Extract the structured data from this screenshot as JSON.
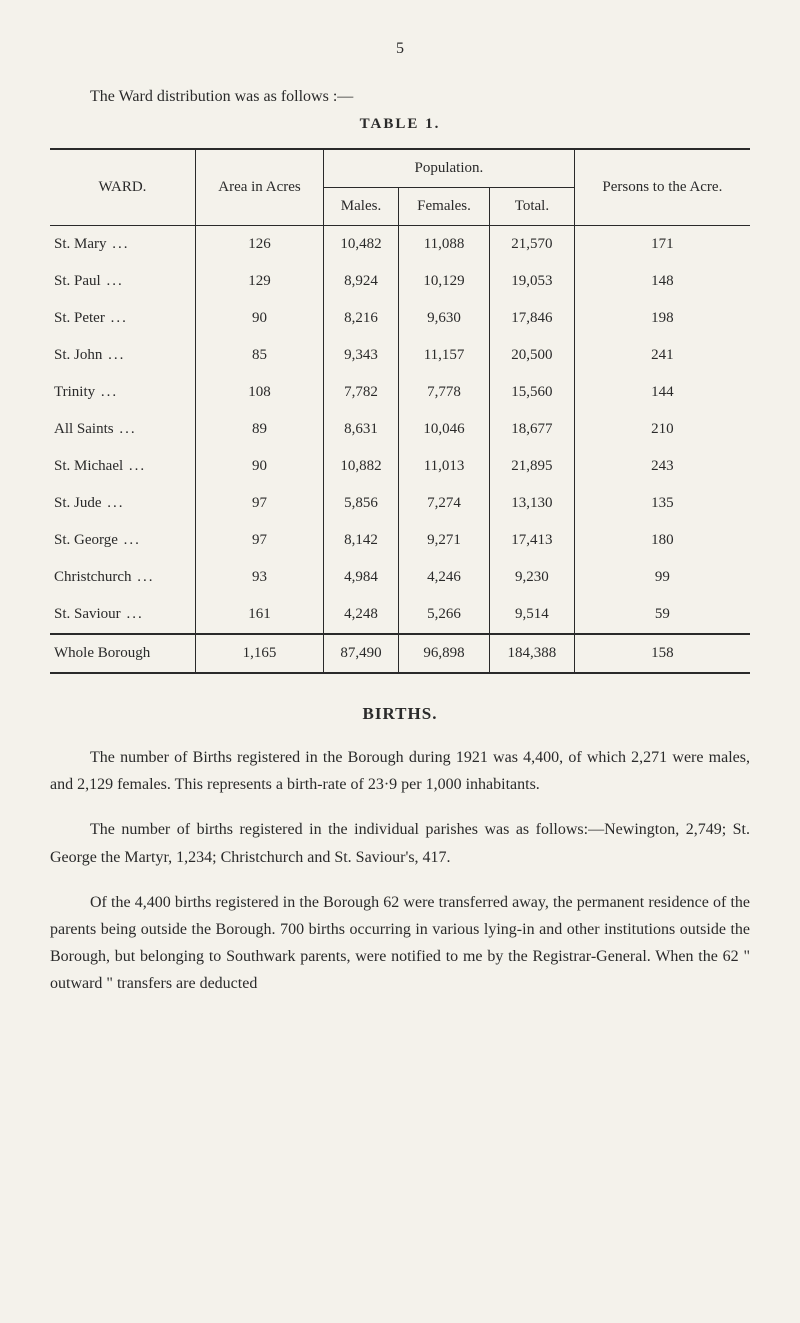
{
  "page_number": "5",
  "intro": "The Ward distribution was as follows :—",
  "table": {
    "title": "TABLE 1.",
    "headers": {
      "ward": "WARD.",
      "area": "Area in Acres",
      "population_group": "Population.",
      "males": "Males.",
      "females": "Females.",
      "total": "Total.",
      "persons": "Persons to the Acre."
    },
    "rows": [
      {
        "ward": "St. Mary",
        "area": "126",
        "males": "10,482",
        "females": "11,088",
        "total": "21,570",
        "persons": "171"
      },
      {
        "ward": "St. Paul",
        "area": "129",
        "males": "8,924",
        "females": "10,129",
        "total": "19,053",
        "persons": "148"
      },
      {
        "ward": "St. Peter",
        "area": "90",
        "males": "8,216",
        "females": "9,630",
        "total": "17,846",
        "persons": "198"
      },
      {
        "ward": "St. John",
        "area": "85",
        "males": "9,343",
        "females": "11,157",
        "total": "20,500",
        "persons": "241"
      },
      {
        "ward": "Trinity",
        "area": "108",
        "males": "7,782",
        "females": "7,778",
        "total": "15,560",
        "persons": "144"
      },
      {
        "ward": "All Saints",
        "area": "89",
        "males": "8,631",
        "females": "10,046",
        "total": "18,677",
        "persons": "210"
      },
      {
        "ward": "St. Michael",
        "area": "90",
        "males": "10,882",
        "females": "11,013",
        "total": "21,895",
        "persons": "243"
      },
      {
        "ward": "St. Jude",
        "area": "97",
        "males": "5,856",
        "females": "7,274",
        "total": "13,130",
        "persons": "135"
      },
      {
        "ward": "St. George",
        "area": "97",
        "males": "8,142",
        "females": "9,271",
        "total": "17,413",
        "persons": "180"
      },
      {
        "ward": "Christchurch",
        "area": "93",
        "males": "4,984",
        "females": "4,246",
        "total": "9,230",
        "persons": "99"
      },
      {
        "ward": "St. Saviour",
        "area": "161",
        "males": "4,248",
        "females": "5,266",
        "total": "9,514",
        "persons": "59"
      }
    ],
    "footer": {
      "ward": "Whole Borough",
      "area": "1,165",
      "males": "87,490",
      "females": "96,898",
      "total": "184,388",
      "persons": "158"
    }
  },
  "births_section": {
    "title": "BIRTHS.",
    "p1": "The number of Births registered in the Borough during 1921 was 4,400, of which 2,271 were males, and 2,129 females. This represents a birth-rate of 23·9 per 1,000 inhabitants.",
    "p2": "The number of births registered in the individual parishes was as follows:—Newington, 2,749; St. George the Martyr, 1,234; Christchurch and St. Saviour's, 417.",
    "p3": "Of the 4,400 births registered in the Borough 62 were transferred away, the permanent residence of the parents being outside the Borough. 700 births occurring in various lying-in and other institutions outside the Borough, but belonging to Southwark parents, were notified to me by the Registrar-General. When the 62 \" outward \" transfers are deducted"
  },
  "styling": {
    "background_color": "#f4f2eb",
    "text_color": "#2a2a2a",
    "border_color": "#2a2a2a",
    "font_family": "Georgia, Times New Roman, serif",
    "body_font_size": 16,
    "table_font_size": 15
  }
}
